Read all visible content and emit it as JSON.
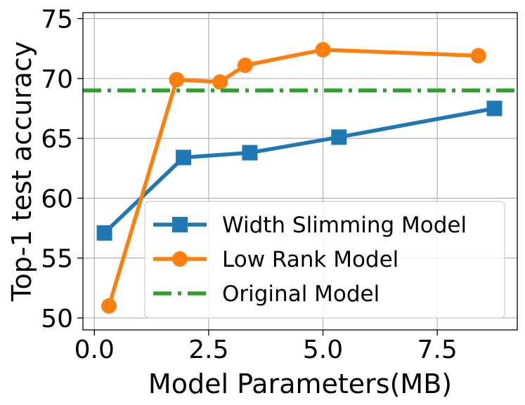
{
  "chart_data": {
    "type": "line",
    "xlabel": "Model Parameters(MB)",
    "ylabel": "Top-1 test accuracy",
    "xlim": [
      -0.25,
      9.25
    ],
    "ylim": [
      49.0,
      75.5
    ],
    "xticks": [
      0.0,
      2.5,
      5.0,
      7.5
    ],
    "xtick_labels": [
      "0.0",
      "2.5",
      "5.0",
      "7.5"
    ],
    "yticks": [
      50,
      55,
      60,
      65,
      70,
      75
    ],
    "ytick_labels": [
      "50",
      "55",
      "60",
      "65",
      "70",
      "75"
    ],
    "grid": true,
    "legend_position": "lower-right",
    "series": [
      {
        "name": "Width Slimming Model",
        "color": "#1f77b4",
        "marker": "square",
        "line_style": "solid",
        "x": [
          0.22,
          1.95,
          3.4,
          5.35,
          8.75
        ],
        "y": [
          57.1,
          63.4,
          63.8,
          65.1,
          67.5
        ]
      },
      {
        "name": "Low Rank Model",
        "color": "#ff7f0e",
        "marker": "circle",
        "line_style": "solid",
        "x": [
          0.32,
          1.8,
          2.75,
          3.3,
          5.0,
          8.4
        ],
        "y": [
          51.0,
          69.9,
          69.7,
          71.1,
          72.4,
          71.9
        ]
      },
      {
        "name": "Original Model",
        "color": "#2ca02c",
        "marker": "none",
        "line_style": "dash-dot",
        "x": [
          -0.25,
          9.25
        ],
        "y": [
          69.0,
          69.0
        ]
      }
    ]
  }
}
